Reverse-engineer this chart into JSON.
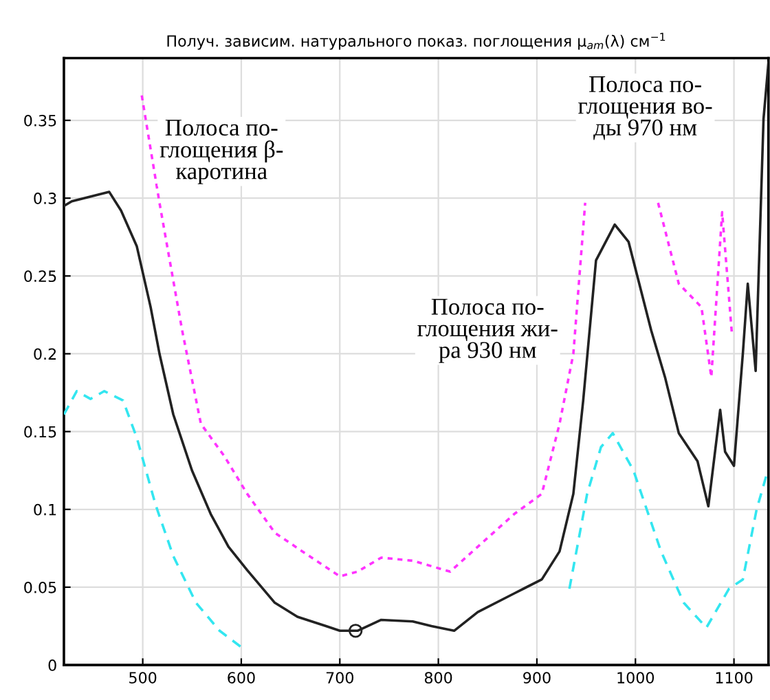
{
  "chart_data": {
    "type": "line",
    "title": "Получ. зависим. натурального показ. поглощения μ$_{am}$(λ) см$^{−1}$",
    "xlim": [
      420,
      1135
    ],
    "ylim": [
      0,
      0.39
    ],
    "xticks": [
      500,
      600,
      700,
      800,
      900,
      1000,
      1100
    ],
    "yticks": [
      0,
      0.05,
      0.1,
      0.15,
      0.2,
      0.25,
      0.3,
      0.35
    ],
    "grid": true,
    "annotations": [
      "Полоса по-\nглощения β-\nкаротина",
      "Полоса по-\nглощения жи-\nра 930 нм",
      "Полоса по-\nглощения во-\nды 970 нм"
    ],
    "series": [
      {
        "color": "#222222",
        "line_style": "solid",
        "x": [
          420,
          428,
          466,
          478,
          494,
          508,
          517,
          531,
          550,
          569,
          587,
          606,
          634,
          657,
          686,
          700,
          718,
          742,
          774,
          793,
          816,
          840,
          877,
          905,
          923,
          937,
          947,
          960,
          979,
          993,
          1016,
          1030,
          1044,
          1063,
          1074,
          1086,
          1091,
          1100,
          1109,
          1114,
          1122,
          1130,
          1135
        ],
        "values": [
          0.295,
          0.298,
          0.304,
          0.292,
          0.269,
          0.23,
          0.2,
          0.161,
          0.125,
          0.097,
          0.076,
          0.061,
          0.04,
          0.031,
          0.025,
          0.022,
          0.022,
          0.029,
          0.028,
          0.025,
          0.022,
          0.034,
          0.046,
          0.055,
          0.073,
          0.11,
          0.17,
          0.26,
          0.283,
          0.272,
          0.215,
          0.185,
          0.149,
          0.131,
          0.102,
          0.164,
          0.137,
          0.128,
          0.2,
          0.245,
          0.189,
          0.351,
          0.387
        ]
      },
      {
        "color": "#ff33ff",
        "line_style": "dotted",
        "x": [
          499,
          517,
          540,
          559,
          583,
          606,
          634,
          662,
          700,
          718,
          742,
          774,
          812,
          840,
          877,
          905,
          923,
          937,
          949
        ],
        "values": [
          0.366,
          0.297,
          0.215,
          0.155,
          0.134,
          0.11,
          0.085,
          0.073,
          0.057,
          0.06,
          0.069,
          0.067,
          0.06,
          0.076,
          0.097,
          0.11,
          0.155,
          0.2,
          0.297
        ]
      },
      {
        "color": "#ff33ff",
        "line_style": "dotted",
        "x": [
          1023,
          1044,
          1067,
          1077,
          1088,
          1098
        ],
        "values": [
          0.297,
          0.245,
          0.23,
          0.185,
          0.291,
          0.212
        ]
      },
      {
        "color": "#33e6f0",
        "line_style": "dashed",
        "x": [
          420,
          433,
          447,
          461,
          480,
          494,
          513,
          531,
          554,
          578,
          601
        ],
        "values": [
          0.161,
          0.176,
          0.171,
          0.176,
          0.17,
          0.146,
          0.103,
          0.07,
          0.04,
          0.022,
          0.011
        ]
      },
      {
        "color": "#33e6f0",
        "line_style": "dashed",
        "x": [
          933,
          951,
          965,
          977,
          998,
          1026,
          1049,
          1072,
          1095,
          1109,
          1123,
          1133
        ],
        "values": [
          0.049,
          0.11,
          0.14,
          0.149,
          0.125,
          0.073,
          0.04,
          0.024,
          0.049,
          0.055,
          0.1,
          0.122
        ]
      },
      {
        "type": "scatter",
        "color": "#222222",
        "marker": "circle",
        "x": [
          716
        ],
        "values": [
          0.022
        ]
      }
    ]
  }
}
